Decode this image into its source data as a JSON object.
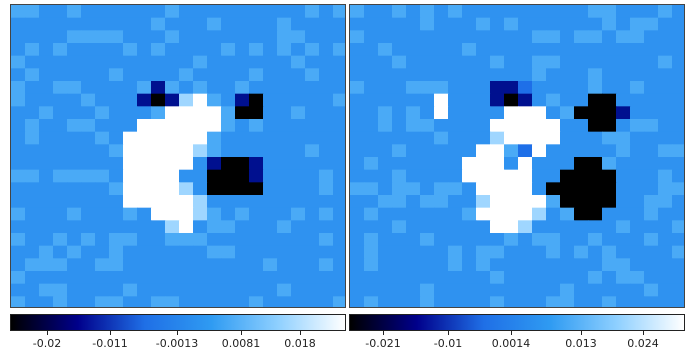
{
  "chart_data": [
    {
      "type": "heatmap",
      "colormap": [
        "#000000",
        "#00008b",
        "#1f6fe6",
        "#2f9bf2",
        "#8fd0ff",
        "#ffffff"
      ],
      "colorbar": {
        "ticks": [
          "-0.02",
          "-0.011",
          "-0.0013",
          "0.0081",
          "0.018"
        ],
        "range": [
          -0.025,
          0.023
        ]
      },
      "grid": 24
    },
    {
      "type": "heatmap",
      "colormap": [
        "#000000",
        "#00008b",
        "#1f6fe6",
        "#2f9bf2",
        "#8fd0ff",
        "#ffffff"
      ],
      "colorbar": {
        "ticks": [
          "-0.021",
          "-0.01",
          "0.0014",
          "0.013",
          "0.024"
        ],
        "range": [
          -0.027,
          0.03
        ]
      },
      "grid": 24
    }
  ]
}
